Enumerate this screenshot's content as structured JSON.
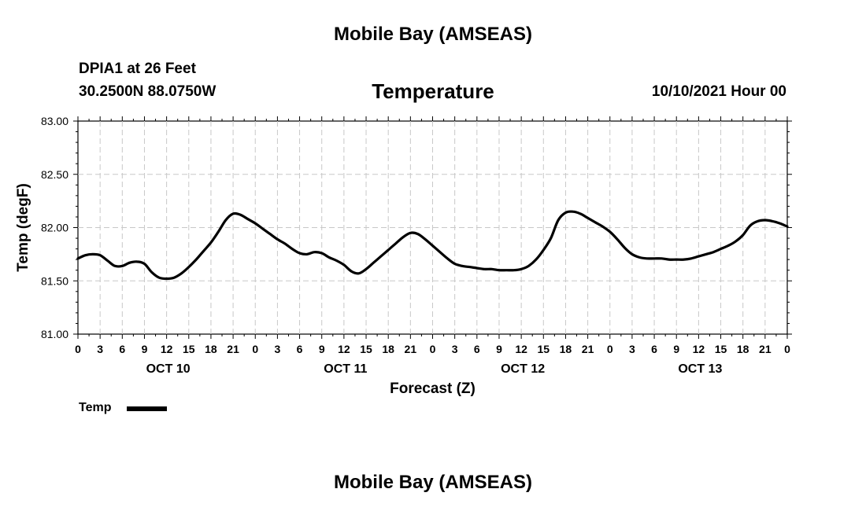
{
  "header": {
    "title": "Mobile Bay (AMSEAS)",
    "station": "DPIA1 at 26 Feet",
    "coords": "30.2500N  88.0750W",
    "subtitle": "Temperature",
    "datetime": "10/10/2021 Hour 00"
  },
  "footer": {
    "title": "Mobile Bay (AMSEAS)"
  },
  "legend": {
    "label": "Temp",
    "color": "#000000"
  },
  "chart_data": {
    "type": "line",
    "title": "Temperature",
    "xlabel": "Forecast (Z)",
    "ylabel": "Temp (degF)",
    "ylim": [
      81.0,
      83.0
    ],
    "yticks": [
      "81.00",
      "81.50",
      "82.00",
      "82.50",
      "83.00"
    ],
    "xlim": [
      0,
      96
    ],
    "xticks": [
      "0",
      "3",
      "6",
      "9",
      "12",
      "15",
      "18",
      "21",
      "0",
      "3",
      "6",
      "9",
      "12",
      "15",
      "18",
      "21",
      "0",
      "3",
      "6",
      "9",
      "12",
      "15",
      "18",
      "21",
      "0",
      "3",
      "6",
      "9",
      "12",
      "15",
      "18",
      "21",
      "0"
    ],
    "day_labels": [
      "OCT 10",
      "OCT 11",
      "OCT 12",
      "OCT 13"
    ],
    "grid": true,
    "series": [
      {
        "name": "Temp",
        "x": [
          0,
          1,
          2,
          3,
          4,
          5,
          6,
          7,
          8,
          9,
          10,
          11,
          12,
          13,
          14,
          15,
          16,
          17,
          18,
          19,
          20,
          21,
          22,
          23,
          24,
          25,
          26,
          27,
          28,
          29,
          30,
          31,
          32,
          33,
          34,
          35,
          36,
          37,
          38,
          39,
          40,
          41,
          42,
          43,
          44,
          45,
          46,
          47,
          48,
          49,
          50,
          51,
          52,
          53,
          54,
          55,
          56,
          57,
          58,
          59,
          60,
          61,
          62,
          63,
          64,
          65,
          66,
          67,
          68,
          69,
          70,
          71,
          72,
          73,
          74,
          75,
          76,
          77,
          78,
          79,
          80,
          81,
          82,
          83,
          84,
          85,
          86,
          87,
          88,
          89,
          90,
          91,
          92,
          93,
          94,
          95,
          96
        ],
        "values": [
          81.71,
          81.74,
          81.75,
          81.74,
          81.69,
          81.64,
          81.64,
          81.67,
          81.68,
          81.66,
          81.58,
          81.53,
          81.52,
          81.53,
          81.57,
          81.63,
          81.7,
          81.78,
          81.86,
          81.96,
          82.07,
          82.13,
          82.12,
          82.08,
          82.04,
          81.99,
          81.94,
          81.89,
          81.85,
          81.8,
          81.76,
          81.75,
          81.77,
          81.76,
          81.72,
          81.69,
          81.65,
          81.59,
          81.57,
          81.61,
          81.67,
          81.73,
          81.79,
          81.85,
          81.91,
          81.95,
          81.94,
          81.89,
          81.83,
          81.77,
          81.71,
          81.66,
          81.64,
          81.63,
          81.62,
          81.61,
          81.61,
          81.6,
          81.6,
          81.6,
          81.61,
          81.64,
          81.7,
          81.79,
          81.9,
          82.07,
          82.14,
          82.15,
          82.13,
          82.09,
          82.05,
          82.01,
          81.96,
          81.89,
          81.81,
          81.75,
          81.72,
          81.71,
          81.71,
          81.71,
          81.7,
          81.7,
          81.7,
          81.71,
          81.73,
          81.75,
          81.77,
          81.8,
          81.83,
          81.87,
          81.93,
          82.02,
          82.06,
          82.07,
          82.06,
          82.04,
          82.01
        ]
      }
    ]
  }
}
